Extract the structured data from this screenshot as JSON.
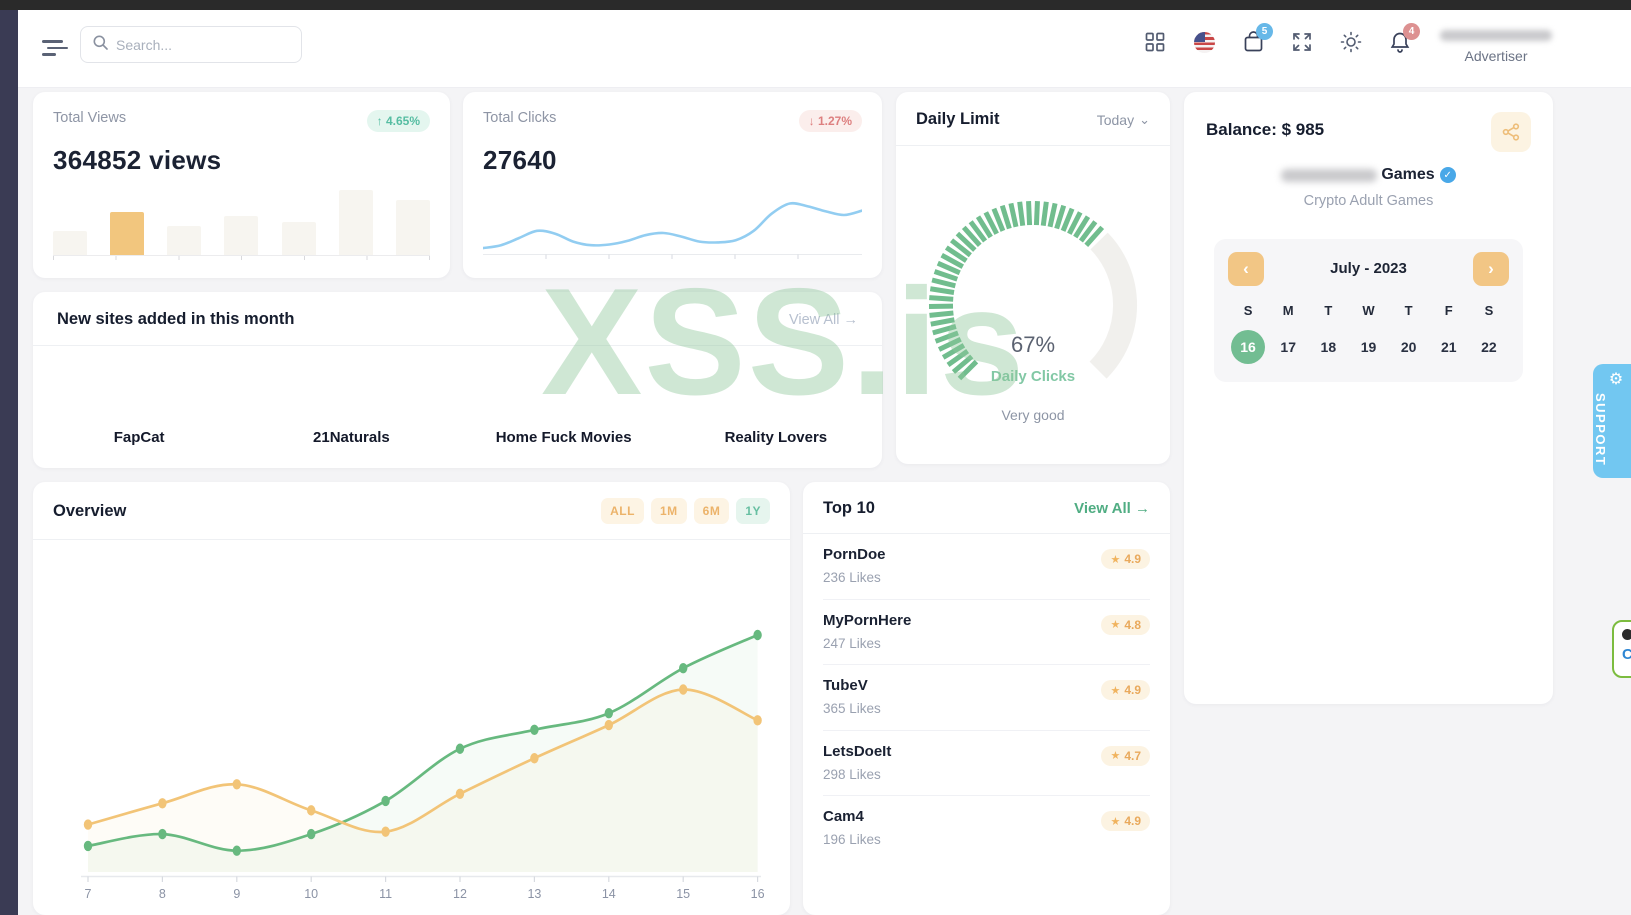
{
  "topbar": {
    "search_placeholder": "Search...",
    "cart_badge": "5",
    "bell_badge": "4",
    "user_role": "Advertiser"
  },
  "icons": {
    "star": "★",
    "arrow_right": "→",
    "chevron_left": "‹",
    "chevron_right": "›",
    "chevron_down": "⌄",
    "gear": "⚙",
    "check": "✓",
    "chat_letter": "C"
  },
  "watermark": "XSS.is",
  "support_label": "SUPPORT",
  "cards": {
    "total_views": {
      "title": "Total Views",
      "badge": "↑ 4.65%",
      "value": "364852 views"
    },
    "total_clicks": {
      "title": "Total Clicks",
      "badge": "↓ 1.27%",
      "value": "27640"
    },
    "daily_limit": {
      "title": "Daily Limit",
      "period": "Today",
      "percent": "67%",
      "metric": "Daily Clicks",
      "status": "Very good"
    },
    "balance": {
      "title": "Balance: $ 985",
      "account_name_visible": "Games",
      "account_subtitle": "Crypto Adult Games",
      "calendar": {
        "month": "July - 2023",
        "weekdays": [
          "S",
          "M",
          "T",
          "W",
          "T",
          "F",
          "S"
        ],
        "days": [
          "16",
          "17",
          "18",
          "19",
          "20",
          "21",
          "22"
        ],
        "selected_index": 0
      }
    },
    "new_sites": {
      "title": "New sites added in this month",
      "view_all": "View All",
      "sites": [
        "FapCat",
        "21Naturals",
        "Home Fuck Movies",
        "Reality Lovers"
      ]
    },
    "overview": {
      "title": "Overview",
      "filters": [
        "ALL",
        "1M",
        "6M",
        "1Y"
      ],
      "active_filter": "1Y"
    },
    "top10": {
      "title": "Top 10",
      "view_all": "View All",
      "items": [
        {
          "name": "PornDoe",
          "likes": "236 Likes",
          "rating": "4.9"
        },
        {
          "name": "MyPornHere",
          "likes": "247 Likes",
          "rating": "4.8"
        },
        {
          "name": "TubeV",
          "likes": "365 Likes",
          "rating": "4.9"
        },
        {
          "name": "LetsDoeIt",
          "likes": "298 Likes",
          "rating": "4.7"
        },
        {
          "name": "Cam4",
          "likes": "196 Likes",
          "rating": "4.9"
        }
      ]
    }
  },
  "chart_data": [
    {
      "id": "views-bars",
      "type": "bar",
      "title": "Total Views mini bar chart",
      "values": [
        36,
        64,
        43,
        57,
        48,
        95,
        81
      ],
      "highlight_index": 1,
      "bar_color": "#f7f5f0",
      "highlight_color": "#f2c67e",
      "ylim": [
        0,
        100
      ]
    },
    {
      "id": "clicks-spark",
      "type": "line",
      "title": "Total Clicks sparkline",
      "values": [
        4,
        8,
        18,
        28,
        24,
        13,
        8,
        9,
        14,
        22,
        25,
        20,
        13,
        12,
        15,
        28,
        52,
        66,
        62,
        55,
        50,
        56
      ],
      "color": "#92cdf1",
      "ylim": [
        0,
        100
      ]
    },
    {
      "id": "overview-lines",
      "type": "line",
      "title": "Overview",
      "x": [
        7,
        8,
        9,
        10,
        11,
        12,
        13,
        14,
        15,
        16
      ],
      "xlabels": [
        "7",
        "8",
        "9",
        "10",
        "11",
        "12",
        "13",
        "14",
        "15",
        "16"
      ],
      "ylim": [
        0,
        100
      ],
      "series": [
        {
          "name": "green-series",
          "color": "#67b97f",
          "values": [
            11,
            16,
            9,
            16,
            30,
            52,
            60,
            67,
            86,
            100
          ]
        },
        {
          "name": "orange-series",
          "color": "#f2c477",
          "values": [
            20,
            29,
            37,
            26,
            17,
            33,
            48,
            62,
            77,
            64
          ]
        }
      ],
      "legend": "none",
      "grid": "off"
    },
    {
      "id": "daily-gauge",
      "type": "gauge",
      "title": "Daily Limit gauge",
      "value": 67,
      "max": 100,
      "color": "#71bd8e",
      "track_color": "#f1f0ed"
    }
  ]
}
